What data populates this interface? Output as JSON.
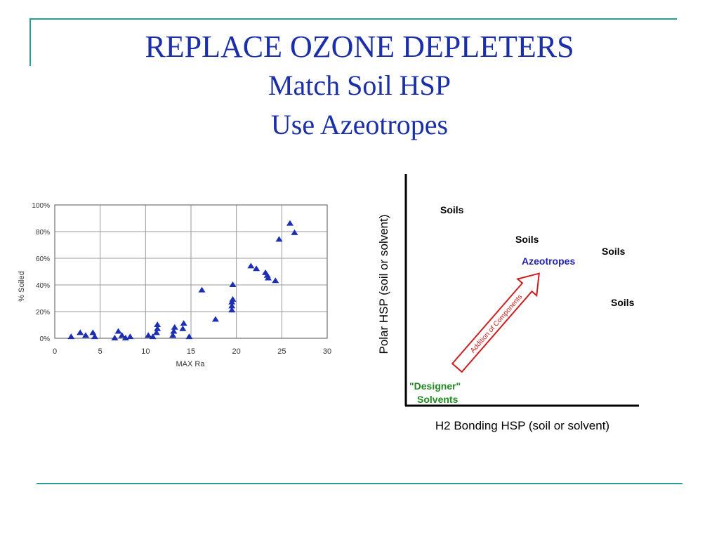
{
  "slide": {
    "title": "REPLACE OZONE DEPLETERS",
    "subtitle_1": "Match Soil HSP",
    "subtitle_2": "Use Azeotropes"
  },
  "colors": {
    "title": "#1a2fa8",
    "accent_rule": "#2e9c9c",
    "marker": "#1c2fb4",
    "arrow": "#cc1f1f",
    "azeotropes": "#2222aa",
    "designer": "#1f8a1f"
  },
  "chart_data": [
    {
      "type": "scatter",
      "xlabel": "MAX Ra",
      "ylabel": "% Soiled",
      "xlim": [
        0,
        30
      ],
      "ylim": [
        0,
        100
      ],
      "x_ticks": [
        "0",
        "5",
        "10",
        "15",
        "20",
        "25",
        "30"
      ],
      "y_ticks": [
        "0%",
        "20%",
        "40%",
        "60%",
        "80%",
        "100%"
      ],
      "grid": true,
      "marker": "triangle",
      "points": [
        {
          "x": 1.8,
          "y": 1
        },
        {
          "x": 2.8,
          "y": 4
        },
        {
          "x": 3.4,
          "y": 2
        },
        {
          "x": 4.2,
          "y": 4
        },
        {
          "x": 4.4,
          "y": 1
        },
        {
          "x": 6.6,
          "y": 0
        },
        {
          "x": 7.0,
          "y": 5
        },
        {
          "x": 7.4,
          "y": 2
        },
        {
          "x": 7.8,
          "y": 0
        },
        {
          "x": 8.3,
          "y": 1
        },
        {
          "x": 10.3,
          "y": 2
        },
        {
          "x": 10.8,
          "y": 1
        },
        {
          "x": 11.2,
          "y": 4
        },
        {
          "x": 11.3,
          "y": 7
        },
        {
          "x": 11.3,
          "y": 10
        },
        {
          "x": 13.0,
          "y": 2
        },
        {
          "x": 13.1,
          "y": 5
        },
        {
          "x": 13.2,
          "y": 8
        },
        {
          "x": 14.1,
          "y": 7
        },
        {
          "x": 14.2,
          "y": 11
        },
        {
          "x": 14.8,
          "y": 1
        },
        {
          "x": 16.2,
          "y": 36
        },
        {
          "x": 17.7,
          "y": 14
        },
        {
          "x": 19.5,
          "y": 21
        },
        {
          "x": 19.5,
          "y": 24
        },
        {
          "x": 19.5,
          "y": 27
        },
        {
          "x": 19.6,
          "y": 29
        },
        {
          "x": 19.6,
          "y": 40
        },
        {
          "x": 21.6,
          "y": 54
        },
        {
          "x": 22.2,
          "y": 52
        },
        {
          "x": 23.2,
          "y": 49
        },
        {
          "x": 23.4,
          "y": 47
        },
        {
          "x": 23.5,
          "y": 45
        },
        {
          "x": 24.3,
          "y": 43
        },
        {
          "x": 24.7,
          "y": 74
        },
        {
          "x": 25.9,
          "y": 86
        },
        {
          "x": 26.4,
          "y": 79
        }
      ]
    },
    {
      "type": "diagram",
      "xlabel": "H2 Bonding HSP (soil or solvent)",
      "ylabel": "Polar HSP (soil or solvent)",
      "labels": [
        {
          "name": "soils_1",
          "text": "Soils"
        },
        {
          "name": "soils_2",
          "text": "Soils"
        },
        {
          "name": "soils_3",
          "text": "Soils"
        },
        {
          "name": "soils_4",
          "text": "Soils"
        },
        {
          "name": "azeotropes",
          "text": "Azeotropes"
        },
        {
          "name": "designer_1",
          "text": "\"Designer\""
        },
        {
          "name": "designer_2",
          "text": "Solvents"
        }
      ],
      "arrow_label": "Addition of Components"
    }
  ]
}
